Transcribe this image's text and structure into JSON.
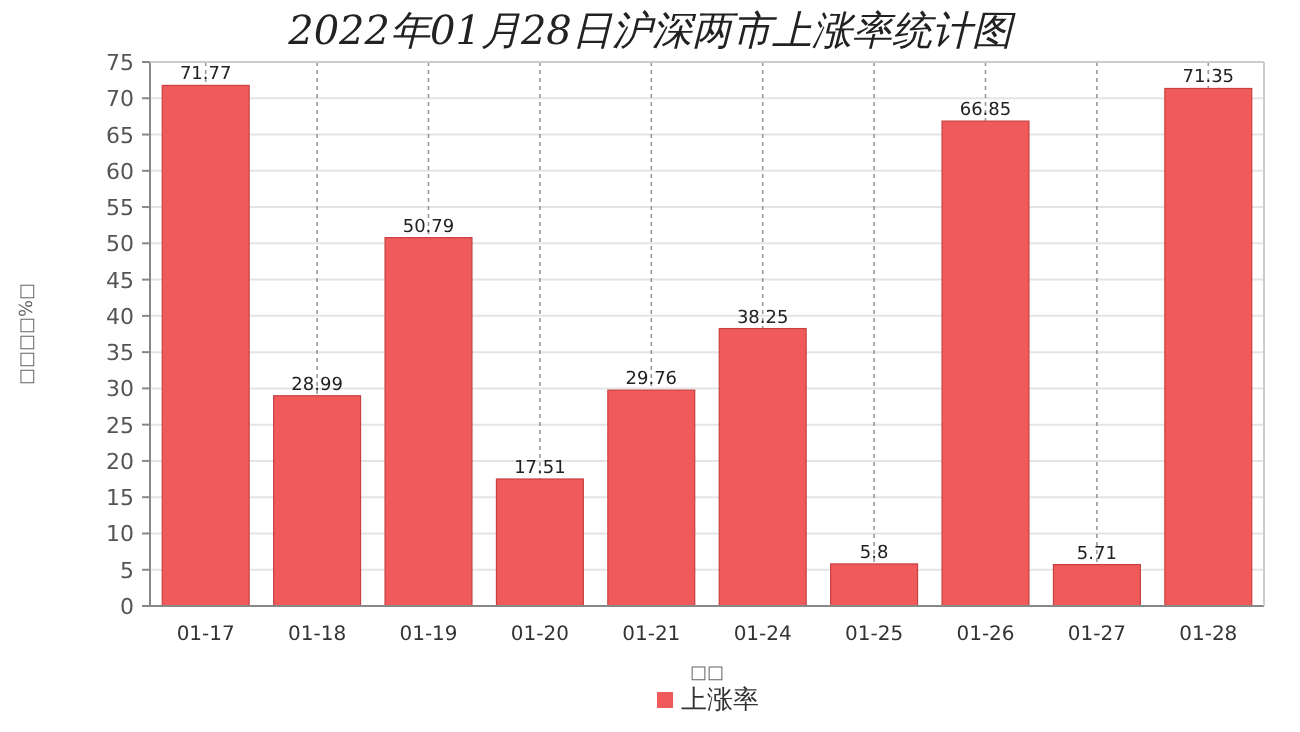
{
  "chart_data": {
    "type": "bar",
    "title": "2022年01月28日沪深两市上涨率统计图",
    "xlabel": "□□",
    "ylabel": "□□□□%□",
    "categories": [
      "01-17",
      "01-18",
      "01-19",
      "01-20",
      "01-21",
      "01-24",
      "01-25",
      "01-26",
      "01-27",
      "01-28"
    ],
    "series": [
      {
        "name": "上涨率",
        "color": "#f05a5a",
        "values": [
          71.77,
          28.99,
          50.79,
          17.51,
          29.76,
          38.25,
          5.8,
          66.85,
          5.71,
          71.35
        ]
      }
    ],
    "ylim": [
      0,
      75
    ],
    "yticks": [
      0,
      5,
      10,
      15,
      20,
      25,
      30,
      35,
      40,
      45,
      50,
      55,
      60,
      65,
      70,
      75
    ],
    "grid": true,
    "legend": "bottom",
    "data_labels": true
  }
}
